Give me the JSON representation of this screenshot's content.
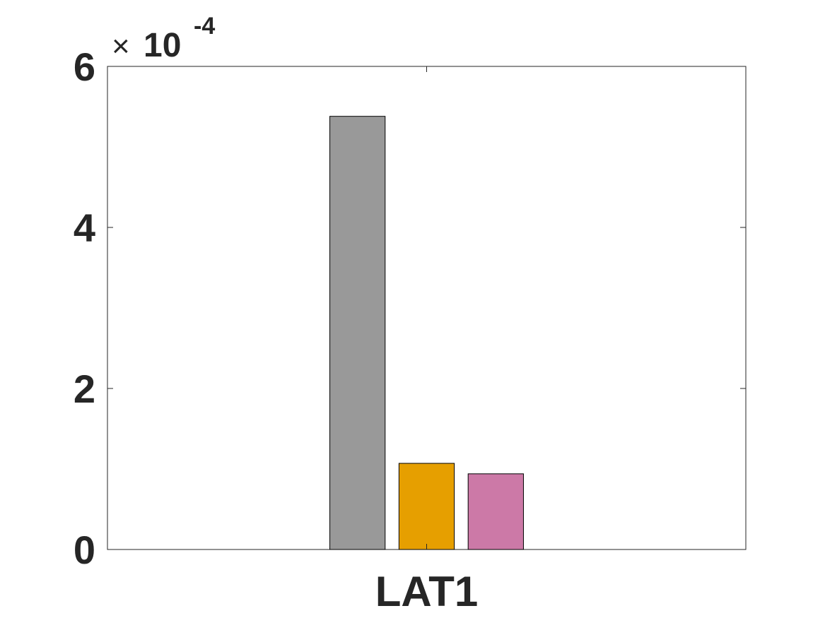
{
  "chart_data": {
    "type": "bar",
    "categories": [
      "LAT1"
    ],
    "series": [
      {
        "values": [
          0.000538
        ],
        "color": "#999999"
      },
      {
        "values": [
          0.000107
        ],
        "color": "#E69F00"
      },
      {
        "values": [
          9.4e-05
        ],
        "color": "#CC79A7"
      }
    ],
    "ylim": [
      0,
      0.0006
    ],
    "yticks": [
      0,
      0.0002,
      0.0004,
      0.0006
    ],
    "ytick_labels": [
      "0",
      "2",
      "4",
      "6"
    ],
    "exponent_multiplier": "×",
    "exponent_base": "10",
    "exponent_power": "-4",
    "title": "",
    "xlabel": "",
    "ylabel": "",
    "grid": false,
    "legend": "none"
  }
}
